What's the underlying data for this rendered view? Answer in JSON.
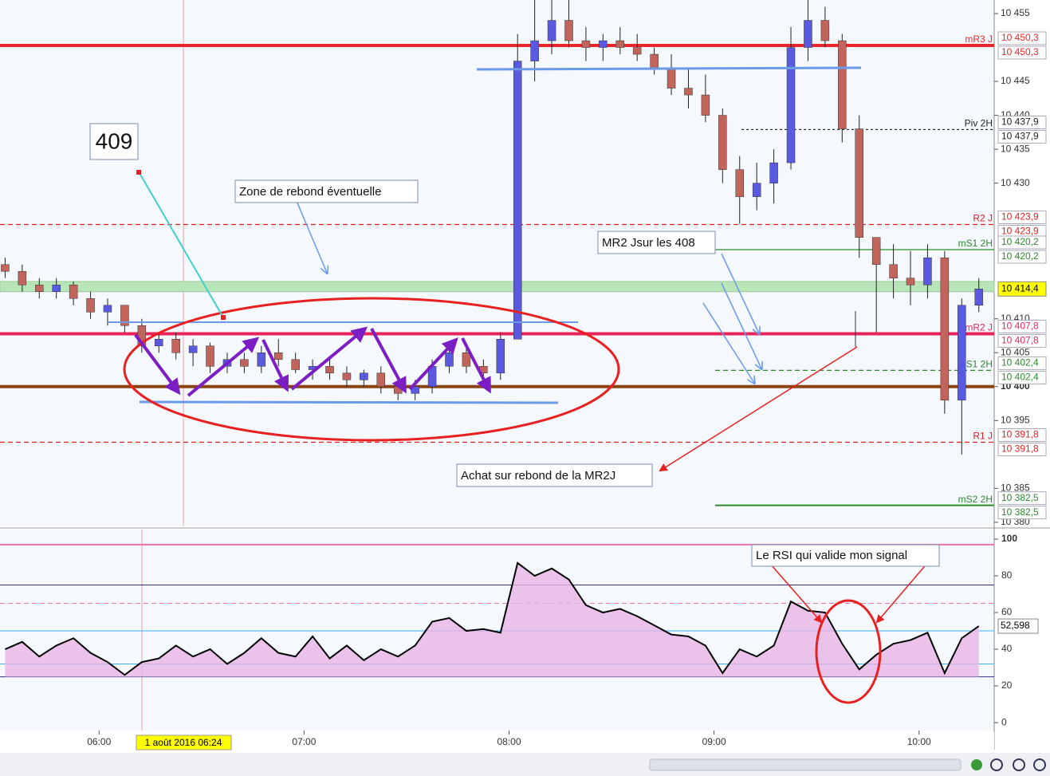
{
  "chart_data": [
    {
      "type": "candlestick",
      "xlim": [
        "05:31",
        "10:22"
      ],
      "x": [
        "05:30",
        "05:35",
        "05:40",
        "05:45",
        "05:50",
        "05:55",
        "06:00",
        "06:05",
        "06:10",
        "06:15",
        "06:20",
        "06:25",
        "06:30",
        "06:35",
        "06:40",
        "06:45",
        "06:50",
        "06:55",
        "07:00",
        "07:05",
        "07:10",
        "07:15",
        "07:20",
        "07:25",
        "07:30",
        "07:35",
        "07:40",
        "07:45",
        "07:50",
        "07:55",
        "08:00",
        "08:05",
        "08:10",
        "08:15",
        "08:20",
        "08:25",
        "08:30",
        "08:35",
        "08:40",
        "08:45",
        "08:50",
        "08:55",
        "09:00",
        "09:05",
        "09:10",
        "09:15",
        "09:20",
        "09:25",
        "09:30",
        "09:35",
        "09:40",
        "09:45",
        "09:50",
        "09:55",
        "10:00",
        "10:05",
        "10:10",
        "10:15"
      ],
      "ohlc": [
        [
          10418,
          10419,
          10416,
          10417
        ],
        [
          10417,
          10418,
          10414,
          10415
        ],
        [
          10415,
          10416,
          10413,
          10414
        ],
        [
          10414,
          10416,
          10413,
          10415
        ],
        [
          10415,
          10415.5,
          10412,
          10413
        ],
        [
          10413,
          10414,
          10410,
          10411
        ],
        [
          10411,
          10413,
          10409,
          10412
        ],
        [
          10412,
          10412,
          10408,
          10409
        ],
        [
          10409,
          10410,
          10405,
          10406
        ],
        [
          10406,
          10408,
          10405,
          10407
        ],
        [
          10407,
          10408,
          10404,
          10405
        ],
        [
          10405,
          10407,
          10403,
          10406
        ],
        [
          10406,
          10406.5,
          10402,
          10403
        ],
        [
          10403,
          10405,
          10402,
          10404
        ],
        [
          10404,
          10405,
          10402,
          10403
        ],
        [
          10403,
          10406,
          10402,
          10405
        ],
        [
          10405,
          10407,
          10403,
          10404
        ],
        [
          10404,
          10405,
          10402,
          10402.5
        ],
        [
          10402.5,
          10404,
          10401,
          10403
        ],
        [
          10403,
          10404,
          10401,
          10402
        ],
        [
          10402,
          10403,
          10400,
          10401
        ],
        [
          10401,
          10402.5,
          10400,
          10402
        ],
        [
          10402,
          10403,
          10399,
          10400
        ],
        [
          10400,
          10401,
          10398,
          10399
        ],
        [
          10399,
          10401,
          10398,
          10400
        ],
        [
          10400,
          10404,
          10399,
          10403
        ],
        [
          10403,
          10406,
          10402,
          10405
        ],
        [
          10405,
          10406,
          10402,
          10403
        ],
        [
          10403,
          10404,
          10401,
          10402
        ],
        [
          10402,
          10408,
          10401,
          10407
        ],
        [
          10407,
          10452,
          10407,
          10448
        ],
        [
          10448,
          10457,
          10445,
          10451
        ],
        [
          10451,
          10457,
          10449,
          10454
        ],
        [
          10454,
          10457,
          10450,
          10451
        ],
        [
          10451,
          10453,
          10448,
          10450
        ],
        [
          10450,
          10452,
          10448,
          10451
        ],
        [
          10451,
          10453,
          10449,
          10450
        ],
        [
          10450,
          10452,
          10448,
          10449
        ],
        [
          10449,
          10450,
          10446,
          10447
        ],
        [
          10447,
          10449,
          10443,
          10444
        ],
        [
          10444,
          10447,
          10441,
          10443
        ],
        [
          10443,
          10446,
          10439,
          10440
        ],
        [
          10440,
          10441,
          10430,
          10432
        ],
        [
          10432,
          10434,
          10424,
          10428
        ],
        [
          10428,
          10433,
          10426,
          10430
        ],
        [
          10430,
          10435,
          10427,
          10433
        ],
        [
          10433,
          10453,
          10432,
          10450
        ],
        [
          10450,
          10457,
          10448,
          10454
        ],
        [
          10454,
          10456,
          10450,
          10451
        ],
        [
          10451,
          10452,
          10436,
          10438
        ],
        [
          10438,
          10440,
          10419,
          10422
        ],
        [
          10422,
          10422,
          10408,
          10418
        ],
        [
          10418,
          10421,
          10413,
          10416
        ],
        [
          10416,
          10420,
          10412,
          10415
        ],
        [
          10415,
          10421,
          10413,
          10419
        ],
        [
          10419,
          10420,
          10396,
          10398
        ],
        [
          10398,
          10413,
          10390,
          10412
        ],
        [
          10412,
          10416,
          10411,
          10414.4
        ]
      ],
      "up_color": "#5a5ae0",
      "down_color": "#c0645c",
      "ylim": [
        10379.4,
        10457
      ],
      "yticks": [
        {
          "value": 10380,
          "label": "10 380"
        },
        {
          "value": 10385,
          "label": "10 385"
        },
        {
          "value": 10395,
          "label": "10 395"
        },
        {
          "value": 10400,
          "label": "10 400"
        },
        {
          "value": 10405,
          "label": "10 405"
        },
        {
          "value": 10410,
          "label": "10 410"
        },
        {
          "value": 10430,
          "label": "10 430"
        },
        {
          "value": 10435,
          "label": "10 435"
        },
        {
          "value": 10440,
          "label": "10 440"
        },
        {
          "value": 10445,
          "label": "10 445"
        },
        {
          "value": 10455,
          "label": "10 455"
        }
      ],
      "xticks": [
        "06:00",
        "07:00",
        "08:00",
        "09:00",
        "10:00"
      ],
      "levels": [
        {
          "name": "mR3 J",
          "value": 10450.3,
          "value_label": "10 450,3",
          "color": "#e8262a",
          "style": "thick"
        },
        {
          "name": "Piv 2H",
          "value": 10437.9,
          "value_label": "10 437,9",
          "color": "#222222",
          "style": "dotted"
        },
        {
          "name": "R2 J",
          "value": 10423.9,
          "value_label": "10 423,9",
          "color": "#e02020",
          "style": "dashed"
        },
        {
          "name": "mS1 2H",
          "value": 10420.2,
          "value_label": "10 420,2",
          "color": "#2a8a2a",
          "style": "thin"
        },
        {
          "name": "mR2 J",
          "value": 10407.8,
          "value_label": "10 407,8",
          "color": "#e8245a",
          "style": "thick"
        },
        {
          "name": "S1 2H",
          "value": 10402.4,
          "value_label": "10 402,4",
          "color": "#2a8a2a",
          "style": "dashed"
        },
        {
          "name": "R1 J",
          "value": 10391.8,
          "value_label": "10 391,8",
          "color": "#e02020",
          "style": "dashed"
        },
        {
          "name": "mS2 2H",
          "value": 10382.5,
          "value_label": "10 382,5",
          "color": "#2a8a2a",
          "style": "medium"
        }
      ],
      "zone": [
        10414,
        10415.5
      ],
      "zone_color": "#b8e6b8",
      "support": 10400,
      "support_color": "#8b4513",
      "last_label": "10 414,4"
    },
    {
      "type": "line",
      "x": [
        "05:30",
        "05:35",
        "05:40",
        "05:45",
        "05:50",
        "05:55",
        "06:00",
        "06:05",
        "06:10",
        "06:15",
        "06:20",
        "06:25",
        "06:30",
        "06:35",
        "06:40",
        "06:45",
        "06:50",
        "06:55",
        "07:00",
        "07:05",
        "07:10",
        "07:15",
        "07:20",
        "07:25",
        "07:30",
        "07:35",
        "07:40",
        "07:45",
        "07:50",
        "07:55",
        "08:00",
        "08:05",
        "08:10",
        "08:15",
        "08:20",
        "08:25",
        "08:30",
        "08:35",
        "08:40",
        "08:45",
        "08:50",
        "08:55",
        "09:00",
        "09:05",
        "09:10",
        "09:15",
        "09:20",
        "09:25",
        "09:30",
        "09:35",
        "09:40",
        "09:45",
        "09:50",
        "09:55",
        "10:00",
        "10:05",
        "10:10",
        "10:15"
      ],
      "values": [
        40,
        44,
        36,
        42,
        46,
        38,
        33,
        26,
        33,
        35,
        42,
        36,
        40,
        32,
        38,
        46,
        38,
        36,
        47,
        35,
        42,
        34,
        40,
        36,
        42,
        55,
        57,
        50,
        51,
        49,
        87,
        80,
        84,
        78,
        64,
        60,
        62,
        58,
        53,
        48,
        47,
        42,
        27,
        40,
        36,
        42,
        66,
        61,
        60,
        43,
        29,
        37,
        43,
        45,
        49,
        27,
        46,
        52.598
      ],
      "color": "#000000",
      "fill": "#e8b4e4",
      "ylim": [
        -4.3,
        105.2
      ],
      "yticks": [
        0,
        20,
        40,
        60,
        80,
        100
      ],
      "levels": [
        {
          "value": 97,
          "color": "#f070b0",
          "style": "solid"
        },
        {
          "value": 75,
          "color": "#303080",
          "style": "solid"
        },
        {
          "value": 65,
          "color": "#f070b0",
          "style": "dashed"
        },
        {
          "value": 50,
          "color": "#40b0f0",
          "style": "solid"
        },
        {
          "value": 32,
          "color": "#40b0f0",
          "style": "solid"
        },
        {
          "value": 25,
          "color": "#303080",
          "style": "solid"
        }
      ],
      "last_label": "52,598"
    }
  ],
  "annotations": {
    "box": "409",
    "zone": "Zone de rebond éventuelle",
    "mr2": "MR2 Jsur les 408",
    "buy": "Achat sur rebond de la MR2J",
    "rsi": "Le RSI qui valide mon signal",
    "crosshair": "1 août 2016 06:24"
  }
}
